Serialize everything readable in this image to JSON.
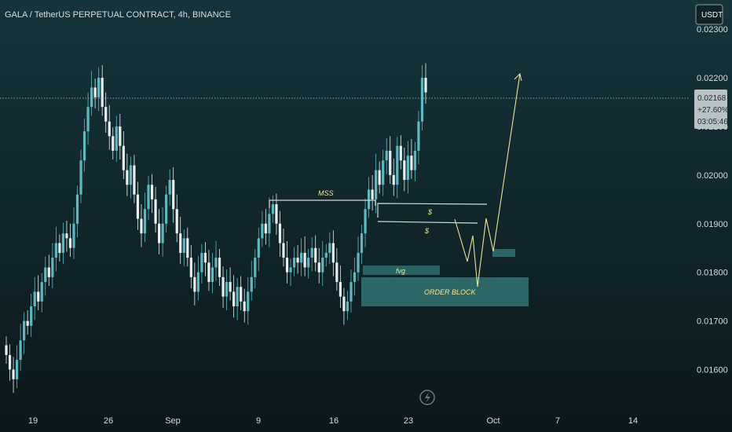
{
  "chart_data": {
    "type": "candlestick",
    "title": "GALA / TetherUS PERPETUAL CONTRACT, 4h, BINANCE",
    "currency": "USDT",
    "y_ticks": [
      "0.02300",
      "0.02200",
      "0.02100",
      "0.02000",
      "0.01900",
      "0.01800",
      "0.01700",
      "0.01600"
    ],
    "y_tick_values": [
      0.023,
      0.022,
      0.021,
      0.02,
      0.019,
      0.018,
      0.017,
      0.016
    ],
    "x_ticks": [
      "19",
      "26",
      "Sep",
      "9",
      "16",
      "23",
      "Oct",
      "7",
      "14"
    ],
    "ylim": [
      0.0152,
      0.0236
    ],
    "last_price": {
      "value": "0.02168",
      "change": "+27.60%",
      "countdown": "03:05:46"
    },
    "candles_close": [
      0.0163,
      0.016,
      0.0158,
      0.0162,
      0.0166,
      0.017,
      0.0169,
      0.0173,
      0.0176,
      0.0174,
      0.0178,
      0.0181,
      0.0179,
      0.0183,
      0.0186,
      0.0184,
      0.0188,
      0.0187,
      0.0185,
      0.019,
      0.0196,
      0.0203,
      0.0209,
      0.0214,
      0.0218,
      0.0216,
      0.022,
      0.0214,
      0.0211,
      0.0208,
      0.0205,
      0.021,
      0.0206,
      0.0201,
      0.0198,
      0.0202,
      0.0196,
      0.0191,
      0.0188,
      0.0193,
      0.0198,
      0.0195,
      0.019,
      0.0186,
      0.019,
      0.0196,
      0.0199,
      0.0193,
      0.0188,
      0.0184,
      0.0187,
      0.0183,
      0.0179,
      0.0176,
      0.018,
      0.0184,
      0.0182,
      0.0178,
      0.0181,
      0.0183,
      0.0179,
      0.0175,
      0.0178,
      0.0176,
      0.0173,
      0.0177,
      0.0174,
      0.0172,
      0.0176,
      0.0179,
      0.0183,
      0.0187,
      0.019,
      0.0188,
      0.0192,
      0.0194,
      0.019,
      0.0186,
      0.0183,
      0.018,
      0.0181,
      0.0183,
      0.0182,
      0.0184,
      0.0181,
      0.0183,
      0.0185,
      0.0182,
      0.018,
      0.0183,
      0.0184,
      0.0186,
      0.0182,
      0.0178,
      0.0175,
      0.0172,
      0.0174,
      0.0178,
      0.018,
      0.0184,
      0.0188,
      0.0193,
      0.0197,
      0.0195,
      0.0201,
      0.0198,
      0.0203,
      0.0205,
      0.02,
      0.0198,
      0.0206,
      0.0203,
      0.0199,
      0.0204,
      0.0201,
      0.0205,
      0.0211,
      0.022,
      0.0217
    ],
    "annotations": {
      "mss_label": "MSS",
      "liquidity_label_1": "$",
      "liquidity_label_2": "$",
      "fvg_label": "fvg",
      "order_block_label": "ORDER BLOCK"
    }
  }
}
